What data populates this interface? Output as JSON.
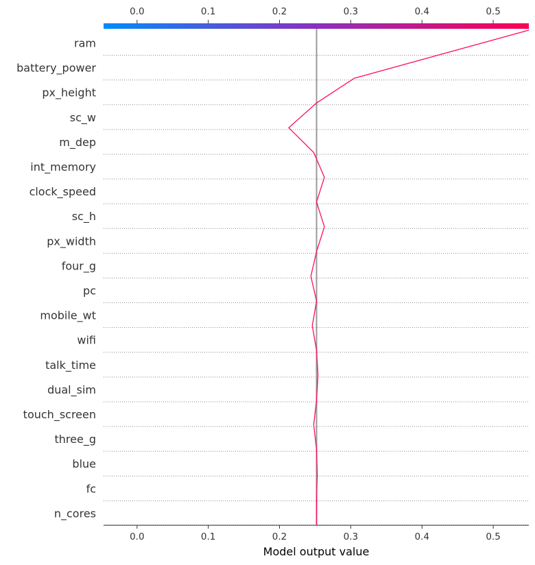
{
  "chart_data": {
    "type": "line",
    "xlabel": "Model output value",
    "xlim": [
      -0.047,
      0.55
    ],
    "x_ticks": [
      0.0,
      0.1,
      0.2,
      0.3,
      0.4,
      0.5
    ],
    "x_tick_labels": [
      "0.0",
      "0.1",
      "0.2",
      "0.3",
      "0.4",
      "0.5"
    ],
    "base_value": 0.252,
    "features": [
      "ram",
      "battery_power",
      "px_height",
      "sc_w",
      "m_dep",
      "int_memory",
      "clock_speed",
      "sc_h",
      "px_width",
      "four_g",
      "pc",
      "mobile_wt",
      "wifi",
      "talk_time",
      "dual_sim",
      "touch_screen",
      "three_g",
      "blue",
      "fc",
      "n_cores"
    ],
    "series": [
      {
        "values": [
          0.55,
          0.305,
          0.252,
          0.213,
          0.248,
          0.263,
          0.252,
          0.263,
          0.252,
          0.244,
          0.252,
          0.246,
          0.252,
          0.254,
          0.252,
          0.248,
          0.252,
          0.253,
          0.252,
          0.252,
          0.252
        ],
        "color": "#ff0d57"
      }
    ],
    "colorbar": {
      "from": "#008bfb",
      "to": "#ff0051",
      "mid": "#8a30c0"
    },
    "grid": "dotted-horizontal",
    "base_line_color": "#999999"
  }
}
